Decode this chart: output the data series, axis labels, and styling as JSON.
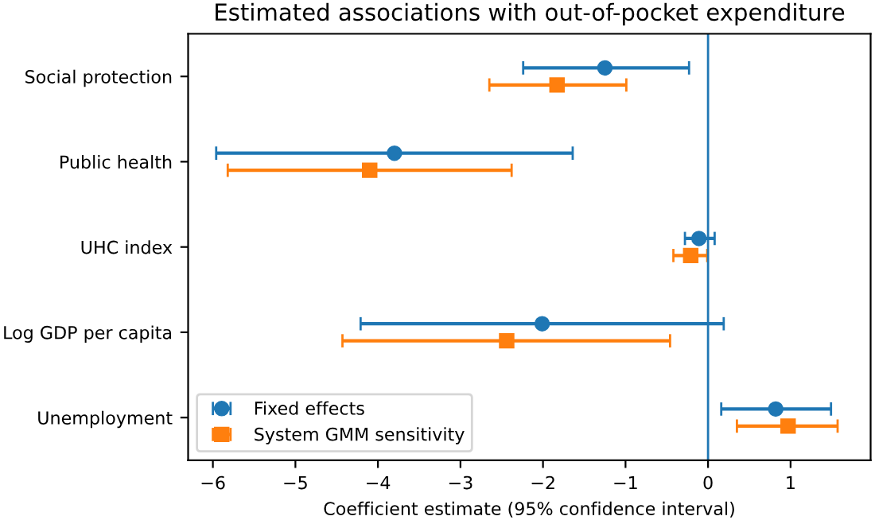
{
  "chart_data": {
    "type": "scatter",
    "orientation": "horizontal",
    "title": "Estimated associations with out-of-pocket expenditure",
    "xlabel": "Coefficient estimate (95% confidence interval)",
    "categories": [
      "Social protection",
      "Public health",
      "UHC index",
      "Log GDP per capita",
      "Unemployment"
    ],
    "series": [
      {
        "name": "Fixed effects",
        "color": "#1f77b4",
        "marker": "circle",
        "values": [
          -1.25,
          -3.8,
          -0.11,
          -2.01,
          0.82
        ],
        "errors": [
          [
            -2.24,
            -0.23
          ],
          [
            -5.96,
            -1.64
          ],
          [
            -0.28,
            0.08
          ],
          [
            -4.21,
            0.19
          ],
          [
            0.16,
            1.49
          ]
        ]
      },
      {
        "name": "System GMM sensitivity",
        "color": "#ff7f0e",
        "marker": "square",
        "values": [
          -1.83,
          -4.1,
          -0.21,
          -2.44,
          0.97
        ],
        "errors": [
          [
            -2.65,
            -0.99
          ],
          [
            -5.82,
            -2.38
          ],
          [
            -0.42,
            -0.01
          ],
          [
            -4.43,
            -0.46
          ],
          [
            0.35,
            1.57
          ]
        ]
      }
    ],
    "xlim": [
      -6.3,
      1.97
    ],
    "xticks": [
      -6,
      -5,
      -4,
      -3,
      -2,
      -1,
      0,
      1
    ],
    "ref_lines": [
      {
        "axis": "x",
        "value": 0,
        "color": "#1f77b4"
      }
    ],
    "legend": "bottom left",
    "grid": false
  }
}
